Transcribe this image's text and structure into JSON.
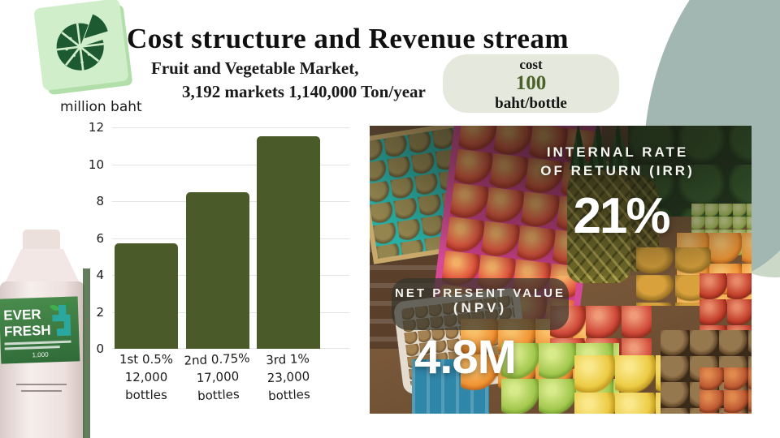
{
  "header": {
    "title": "Cost structure and Revenue stream",
    "subtitle_line1": "Fruit and Vegetable Market,",
    "subtitle_line2": "3,192 markets 1,140,000 Ton/year"
  },
  "cost_badge": {
    "label": "cost",
    "value": "100",
    "unit": "baht/bottle"
  },
  "chart_data": {
    "type": "bar",
    "title": "",
    "xlabel": "",
    "ylabel": "million baht",
    "ylim": [
      0,
      12
    ],
    "yticks": [
      0,
      2,
      4,
      6,
      8,
      10,
      12
    ],
    "grid": true,
    "legend_position": "none",
    "categories": [
      {
        "tier": "1st 0.5%",
        "quantity": "12,000",
        "unit": "bottles"
      },
      {
        "tier": "2nd 0.75%",
        "quantity": "17,000",
        "unit": "bottles"
      },
      {
        "tier": "3rd 1%",
        "quantity": "23,000",
        "unit": "bottles"
      }
    ],
    "values": [
      5.7,
      8.5,
      11.5
    ],
    "bar_color": "#4a5a28"
  },
  "metrics": {
    "irr_label_line1": "INTERNAL RATE",
    "irr_label_line2": "OF RETURN (IRR)",
    "irr_value": "21%",
    "npv_label_line1": "NET PRESENT VALUE",
    "npv_label_line2": "(NPV)",
    "npv_value": "4.8M"
  },
  "product": {
    "brand_line1": "EVER",
    "brand_line2": "FRESH",
    "volume_label": "1,000"
  },
  "colors": {
    "bar_green": "#4a5a28",
    "badge_bg": "#e5e8dc",
    "badge_value_green": "#4a6227",
    "blob_teal": "#a2b7b2",
    "blob_sage": "#cbd7c7",
    "logo_tile_green": "#cfeec9",
    "logo_icon_green": "#1d5a32",
    "bottle_label_green": "#3f7d42"
  }
}
